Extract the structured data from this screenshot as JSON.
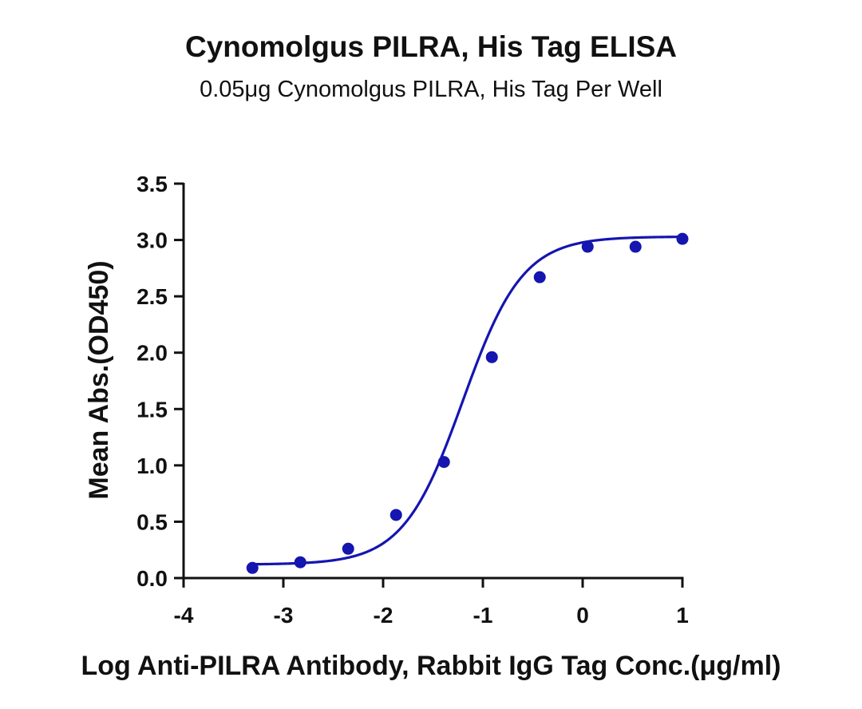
{
  "chart_data": {
    "type": "scatter",
    "title": "Cynomolgus PILRA, His Tag ELISA",
    "subtitle": "0.05μg Cynomolgus PILRA, His Tag Per Well",
    "xlabel": "Log Anti-PILRA Antibody, Rabbit IgG Tag Conc.(μg/ml)",
    "ylabel": "Mean Abs.(OD450)",
    "xlim": [
      -4,
      1
    ],
    "ylim": [
      0,
      3.5
    ],
    "xticks": [
      "-4",
      "-3",
      "-2",
      "-1",
      "0",
      "1"
    ],
    "yticks": [
      "0.0",
      "0.5",
      "1.0",
      "1.5",
      "2.0",
      "2.5",
      "3.0",
      "3.5"
    ],
    "grid": false,
    "color": "#1515b0",
    "series": [
      {
        "x": [
          -3.31,
          -2.83,
          -2.35,
          -1.87,
          -1.39,
          -0.91,
          -0.43,
          0.05,
          0.53,
          1.0
        ],
        "y": [
          0.09,
          0.14,
          0.26,
          0.56,
          1.03,
          1.96,
          2.67,
          2.94,
          2.94,
          3.01
        ]
      }
    ],
    "fit_curve": {
      "type": "4PL",
      "bottom": 0.12,
      "top": 3.03,
      "logEC50": -1.2,
      "hill": 1.45,
      "x_range": [
        -3.31,
        1.0
      ]
    }
  }
}
